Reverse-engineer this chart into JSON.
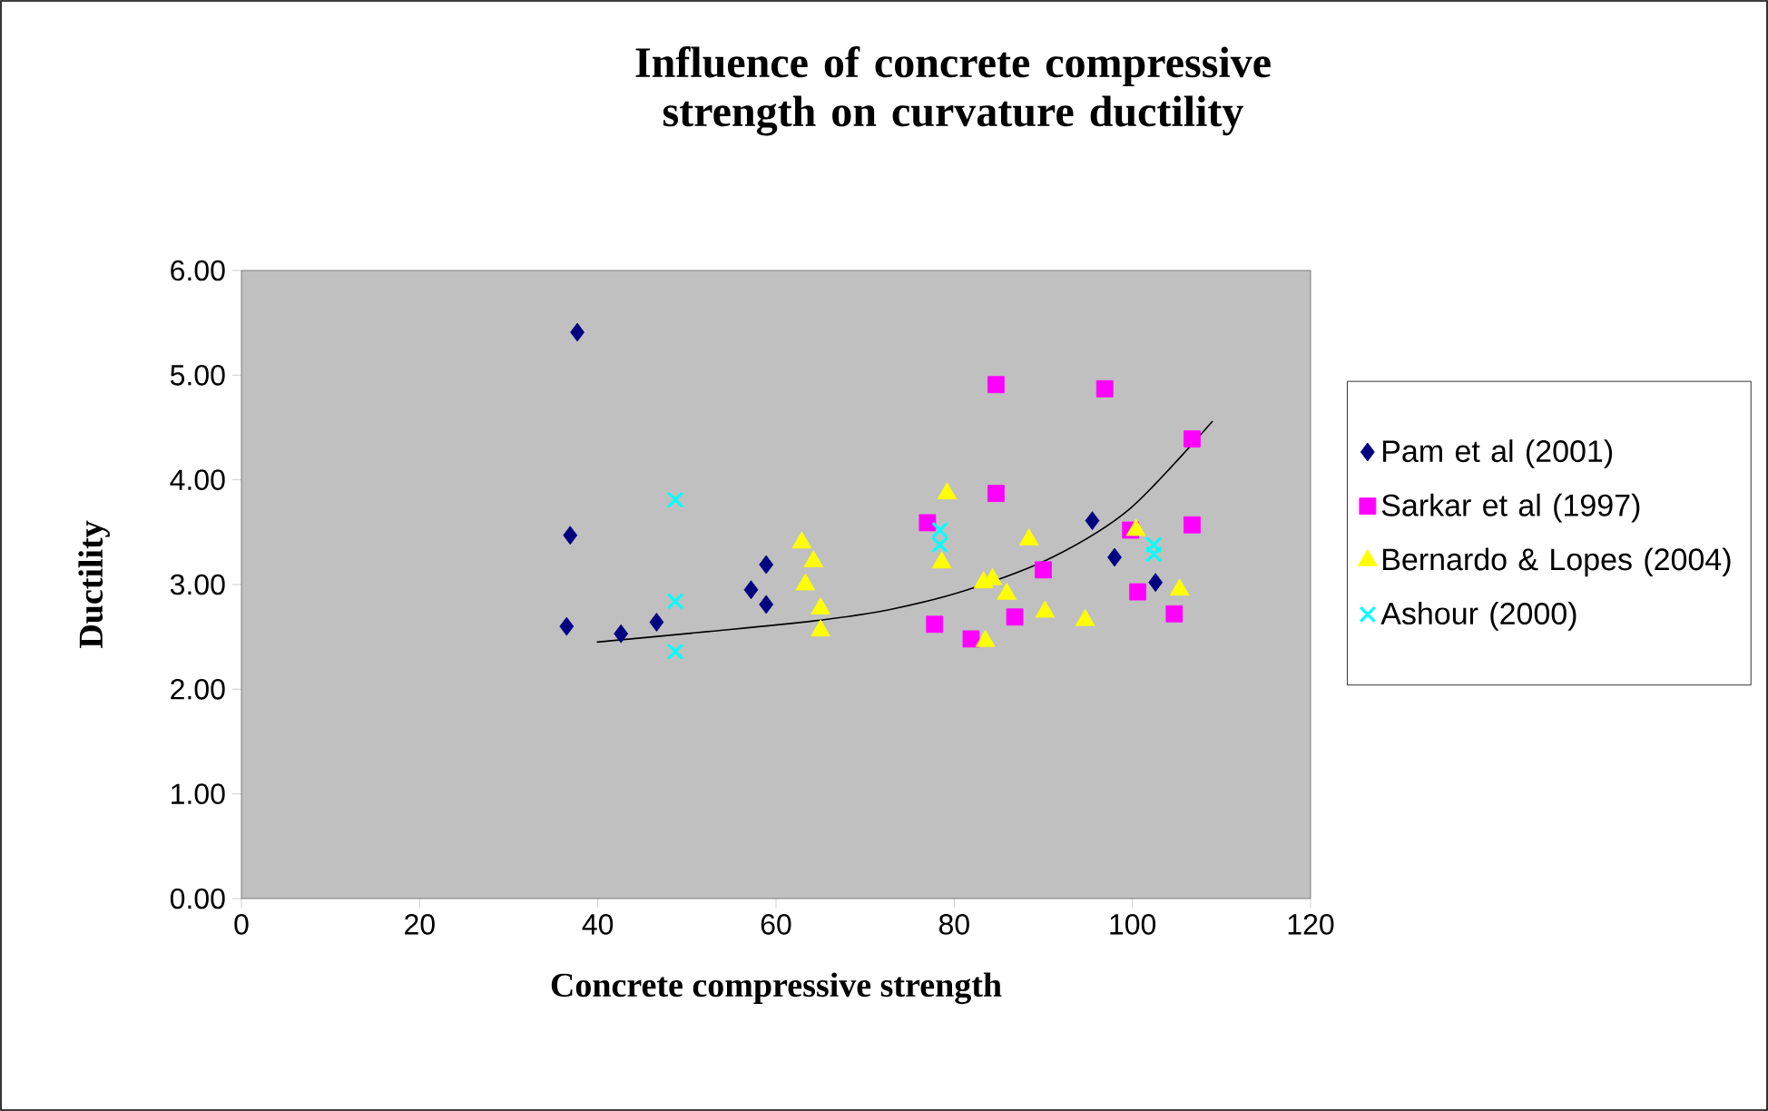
{
  "chart_data": {
    "type": "scatter",
    "title": "Influence of concrete compressive strength on curvature ductility",
    "xlabel": "Concrete compressive strength",
    "ylabel": "Ductility",
    "xlim": [
      0,
      120
    ],
    "xticks": [
      0,
      20,
      40,
      60,
      80,
      100,
      120
    ],
    "ylim": [
      0,
      6
    ],
    "yticks": [
      {
        "value": 0,
        "label": "0.00"
      },
      {
        "value": 1,
        "label": "1.00"
      },
      {
        "value": 2,
        "label": "2.00"
      },
      {
        "value": 3,
        "label": "3.00"
      },
      {
        "value": 4,
        "label": "4.00"
      },
      {
        "value": 5,
        "label": "5.00"
      },
      {
        "value": 6,
        "label": "6.00"
      }
    ],
    "grid": false,
    "legend": "right",
    "series": [
      {
        "name": "Pam et  al (2001)",
        "color": "#000080",
        "marker": "diamond",
        "x": [
          37.7,
          36.9,
          36.5,
          42.6,
          46.6,
          57.2,
          58.9,
          58.9,
          87.0,
          95.5,
          98.0,
          102.6
        ],
        "values": [
          5.41,
          3.47,
          2.6,
          2.53,
          2.64,
          2.95,
          3.19,
          2.81,
          null,
          3.61,
          3.26,
          3.02
        ]
      },
      {
        "name": "Sarkar et al  (1997)",
        "color": "#ff00ff",
        "marker": "square",
        "x": [
          84.7,
          96.9,
          106.7,
          84.7,
          77.0,
          99.8,
          106.7,
          90.0,
          100.6,
          104.7,
          77.8,
          86.8,
          81.9
        ],
        "values": [
          4.91,
          4.87,
          4.39,
          3.87,
          3.59,
          3.52,
          3.57,
          3.14,
          2.93,
          2.72,
          2.62,
          2.69,
          2.48
        ]
      },
      {
        "name": "Bernardo & Lopes (2004)",
        "color": "#ffff00",
        "marker": "triangle",
        "x": [
          62.9,
          64.2,
          63.3,
          65.0,
          65.0,
          79.2,
          78.6,
          88.4,
          83.3,
          84.3,
          85.9,
          90.2,
          94.7,
          83.5,
          100.4,
          105.3
        ],
        "values": [
          3.4,
          3.22,
          3.0,
          2.77,
          2.56,
          3.87,
          3.21,
          3.43,
          3.02,
          3.05,
          2.91,
          2.74,
          2.66,
          2.46,
          3.52,
          2.95
        ]
      },
      {
        "name": "Ashour (2000)",
        "color": "#00ffff",
        "marker": "cross",
        "x": [
          48.7,
          48.7,
          48.7,
          78.4,
          78.4,
          102.4,
          102.4
        ],
        "values": [
          3.81,
          2.84,
          2.36,
          3.52,
          3.38,
          3.38,
          3.29
        ]
      },
      {
        "type": "line",
        "color": "#000000",
        "marker": "none",
        "line_style": "solid",
        "x": [
          39.9,
          52.3,
          64.0,
          72.7,
          81.5,
          91.0,
          99.8,
          109.0
        ],
        "values": [
          2.45,
          2.55,
          2.65,
          2.76,
          2.95,
          3.26,
          3.73,
          4.56
        ]
      }
    ]
  }
}
